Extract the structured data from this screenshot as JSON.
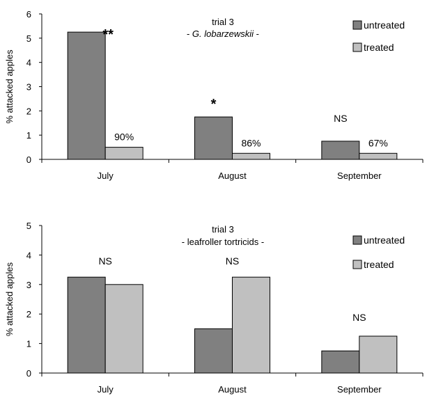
{
  "chart_data": [
    {
      "type": "bar",
      "title": "trial 3",
      "subtitle": "- G. lobarzewskii -",
      "subtitle_prefix": "- ",
      "subtitle_italic": "G. lobarzewskii",
      "subtitle_suffix": " -",
      "ylabel": "% attacked apples",
      "xlabel": "",
      "ylim": [
        0,
        6
      ],
      "yticks": [
        "0",
        "1",
        "2",
        "3",
        "4",
        "5",
        "6"
      ],
      "categories": [
        "July",
        "August",
        "September"
      ],
      "series": [
        {
          "name": "untreated",
          "values": [
            5.25,
            1.75,
            0.75
          ],
          "color": "#808080"
        },
        {
          "name": "treated",
          "values": [
            0.5,
            0.25,
            0.25
          ],
          "color": "#c0c0c0"
        }
      ],
      "significance": [
        "**",
        "*",
        "NS"
      ],
      "efficacy_labels": [
        "90%",
        "86%",
        "67%"
      ],
      "legend_position": "top-right",
      "grid": false
    },
    {
      "type": "bar",
      "title": "trial 3",
      "subtitle": "- leafroller tortricids -",
      "ylabel": "% attacked apples",
      "xlabel": "",
      "ylim": [
        0,
        5
      ],
      "yticks": [
        "0",
        "1",
        "2",
        "3",
        "4",
        "5"
      ],
      "categories": [
        "July",
        "August",
        "September"
      ],
      "series": [
        {
          "name": "untreated",
          "values": [
            3.25,
            1.5,
            0.75
          ],
          "color": "#808080"
        },
        {
          "name": "treated",
          "values": [
            3.0,
            3.25,
            1.25
          ],
          "color": "#c0c0c0"
        }
      ],
      "significance": [
        "NS",
        "NS",
        "NS"
      ],
      "legend_position": "top-right",
      "grid": false
    }
  ]
}
